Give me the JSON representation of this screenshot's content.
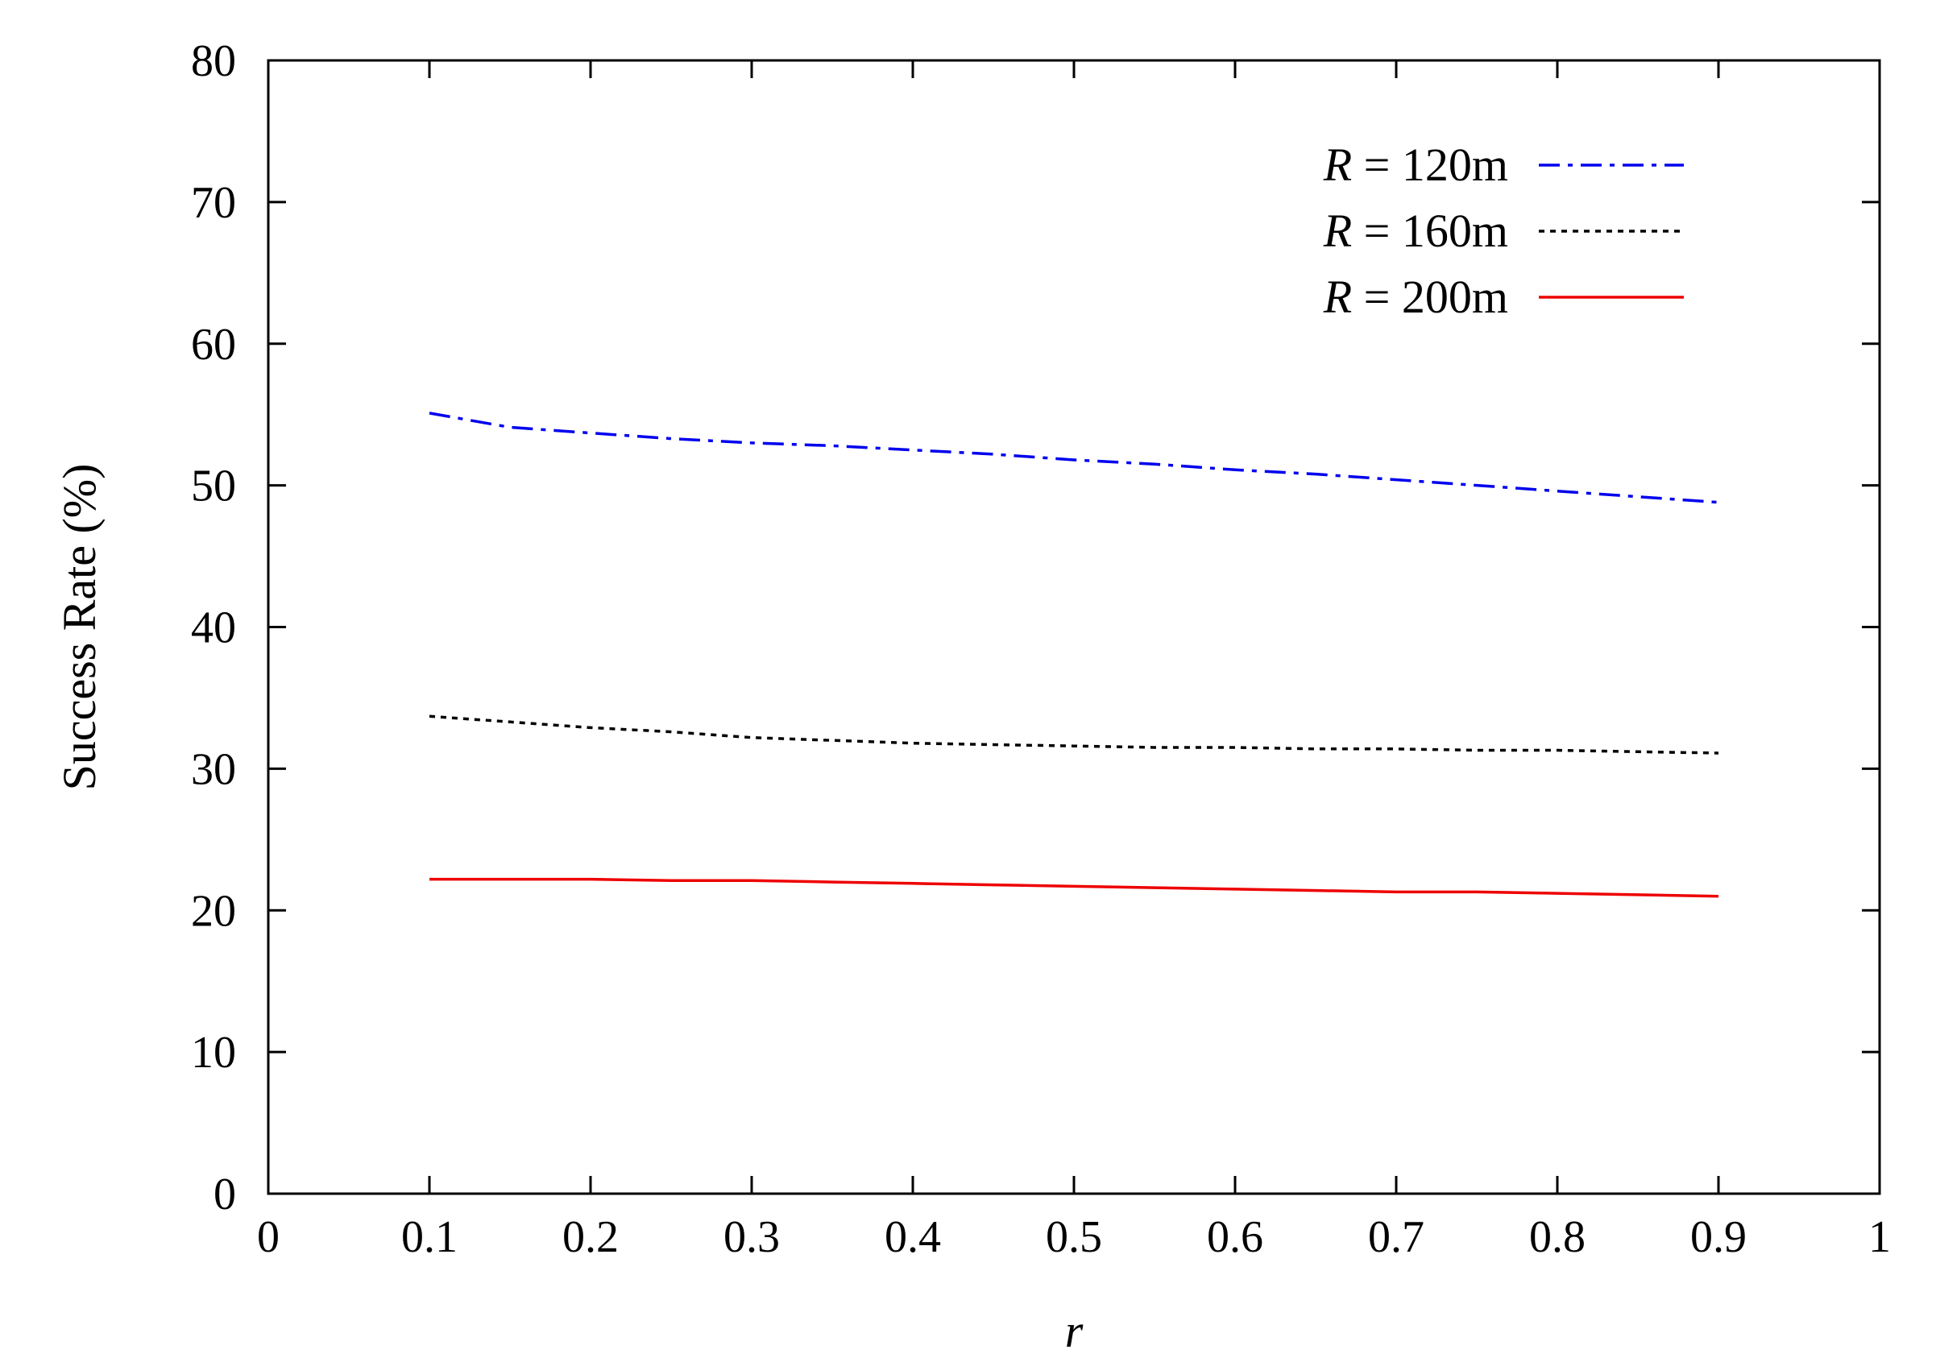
{
  "chart_data": {
    "type": "line",
    "title": "",
    "xlabel": "r",
    "ylabel": "Success Rate (%)",
    "xlim": [
      0,
      1
    ],
    "ylim": [
      0,
      80
    ],
    "xticks": [
      0,
      0.1,
      0.2,
      0.3,
      0.4,
      0.5,
      0.6,
      0.7,
      0.8,
      0.9,
      1
    ],
    "xtick_labels": [
      "0",
      "0.1",
      "0.2",
      "0.3",
      "0.4",
      "0.5",
      "0.6",
      "0.7",
      "0.8",
      "0.9",
      "1"
    ],
    "yticks": [
      0,
      10,
      20,
      30,
      40,
      50,
      60,
      70,
      80
    ],
    "ytick_labels": [
      "0",
      "10",
      "20",
      "30",
      "40",
      "50",
      "60",
      "70",
      "80"
    ],
    "grid": false,
    "legend_position": "top-right",
    "series": [
      {
        "name": "R = 120m",
        "name_prefix": "R",
        "name_suffix": " = 120m",
        "color": "#0000ee",
        "style": "dash-dot",
        "x": [
          0.1,
          0.15,
          0.2,
          0.25,
          0.3,
          0.35,
          0.4,
          0.45,
          0.5,
          0.55,
          0.6,
          0.65,
          0.7,
          0.75,
          0.8,
          0.85,
          0.9
        ],
        "y": [
          55.1,
          54.1,
          53.7,
          53.3,
          53.0,
          52.8,
          52.5,
          52.2,
          51.8,
          51.5,
          51.1,
          50.8,
          50.4,
          50.0,
          49.6,
          49.2,
          48.8
        ]
      },
      {
        "name": "R = 160m",
        "name_prefix": "R",
        "name_suffix": " = 160m",
        "color": "#000000",
        "style": "dotted",
        "x": [
          0.1,
          0.15,
          0.2,
          0.25,
          0.3,
          0.35,
          0.4,
          0.45,
          0.5,
          0.55,
          0.6,
          0.65,
          0.7,
          0.75,
          0.8,
          0.85,
          0.9
        ],
        "y": [
          33.7,
          33.3,
          32.9,
          32.6,
          32.2,
          32.0,
          31.8,
          31.7,
          31.6,
          31.5,
          31.5,
          31.4,
          31.4,
          31.3,
          31.3,
          31.2,
          31.1
        ]
      },
      {
        "name": "R = 200m",
        "name_prefix": "R",
        "name_suffix": " = 200m",
        "color": "#ee0000",
        "style": "solid",
        "x": [
          0.1,
          0.15,
          0.2,
          0.25,
          0.3,
          0.35,
          0.4,
          0.45,
          0.5,
          0.55,
          0.6,
          0.65,
          0.7,
          0.75,
          0.8,
          0.85,
          0.9
        ],
        "y": [
          22.2,
          22.2,
          22.2,
          22.1,
          22.1,
          22.0,
          21.9,
          21.8,
          21.7,
          21.6,
          21.5,
          21.4,
          21.3,
          21.3,
          21.2,
          21.1,
          21.0
        ]
      }
    ]
  }
}
